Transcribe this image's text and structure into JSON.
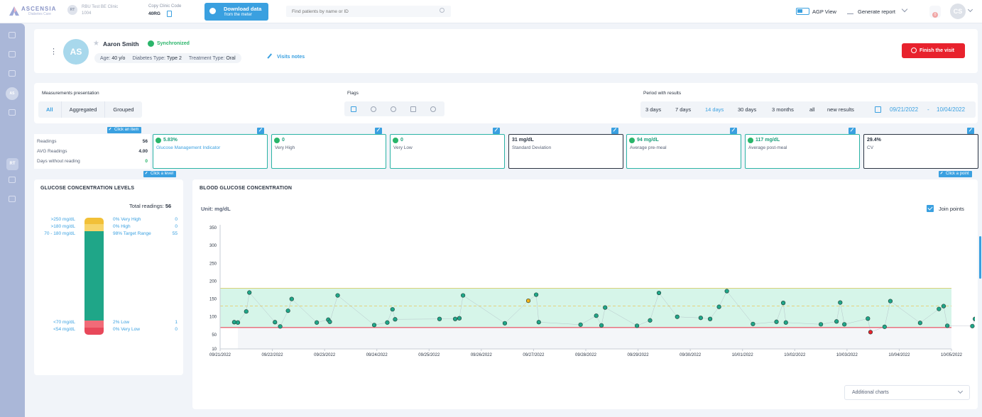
{
  "header": {
    "logo_text": "ASCENSIA",
    "logo_sub": "Diabetes Care",
    "clinic_avatar": "RT",
    "clinic_name": "RBU Test BE Clinic",
    "clinic_id": "1004",
    "copy_title": "Copy Clinic Code",
    "copy_code": "40RG",
    "download_title": "Download data",
    "download_sub": "from the meter",
    "search_placeholder": "Find patients by name or ID",
    "agp_label": "AGP View",
    "generate_label": "Generate report",
    "bell_count": "0",
    "user_initials": "CS"
  },
  "sidebar": {
    "active_circle": "AS",
    "rt_badge": "RT"
  },
  "patient": {
    "initials": "AS",
    "name": "Aaron Smith",
    "status": "Synchronized",
    "age_label": "Age:",
    "age": "40 y/o",
    "diabetes_label": "Diabetes Type:",
    "diabetes": "Type 2",
    "treatment_label": "Treatment Type:",
    "treatment": "Oral",
    "visit_notes": "Visits notes",
    "finish": "Finish the visit"
  },
  "filters": {
    "measurements_label": "Measurements presentation",
    "measurements": [
      "All",
      "Aggregated",
      "Grouped"
    ],
    "flags_label": "Flags",
    "period_label": "Period with results",
    "periods": [
      "3 days",
      "7 days",
      "14 days",
      "30 days",
      "3 months",
      "all",
      "new results"
    ],
    "date_from": "09/21/2022",
    "date_sep": "-",
    "date_to": "10/04/2022"
  },
  "summary": {
    "tag_item": "Click an item",
    "tag_level": "Click a level",
    "tag_point": "Click a point",
    "readings_label": "Readings",
    "readings": "56",
    "avg_label": "AVG Readings",
    "avg": "4.00",
    "days_label": "Days without reading",
    "days": "0"
  },
  "cards": [
    {
      "value": "5.83%",
      "label": "Glucose Management Indicator"
    },
    {
      "value": "0",
      "label": "Very High"
    },
    {
      "value": "0",
      "label": "Very Low"
    },
    {
      "value": "31 mg/dL",
      "label": "Standard Deviation"
    },
    {
      "value": "94 mg/dL",
      "label": "Average pre-meal"
    },
    {
      "value": "117 mg/dL",
      "label": "Average post-meal"
    },
    {
      "value": "29.4%",
      "label": "CV"
    }
  ],
  "levels": {
    "title": "GLUCOSE CONCENTRATION LEVELS",
    "total_label": "Total readings:",
    "total": "56",
    "rows": [
      {
        "range": ">250 mg/dL",
        "pct": "0% Very High",
        "count": "0"
      },
      {
        "range": ">180 mg/dL",
        "pct": "0% High",
        "count": "0"
      },
      {
        "range": "70 - 180 mg/dL",
        "pct": "98% Target Range",
        "count": "55"
      },
      {
        "range": "<70 mg/dL",
        "pct": "2% Low",
        "count": "1"
      },
      {
        "range": "<54 mg/dL",
        "pct": "0% Very Low",
        "count": "0"
      }
    ],
    "colors": {
      "very_high": "#f2c037",
      "high": "#f7d56a",
      "target": "#1fa688",
      "low": "#f16b78",
      "very_low": "#e8485a"
    }
  },
  "chart_section": {
    "title": "BLOOD GLUCOSE CONCENTRATION",
    "unit": "Unit: mg/dL",
    "join_label": "Join points",
    "additional": "Additional charts"
  },
  "chart_data": {
    "type": "scatter",
    "title": "BLOOD GLUCOSE CONCENTRATION",
    "ylabel": "Unit: mg/dL",
    "y_ticks": [
      10,
      50,
      100,
      150,
      200,
      250,
      300,
      350
    ],
    "ylim": [
      10,
      350
    ],
    "x_ticks": [
      "09/21/2022",
      "09/22/2022",
      "09/23/2022",
      "09/24/2022",
      "09/25/2022",
      "09/26/2022",
      "09/27/2022",
      "09/28/2022",
      "09/29/2022",
      "09/30/2022",
      "10/01/2022",
      "10/02/2022",
      "10/03/2022",
      "10/04/2022",
      "10/05/2022"
    ],
    "xlim": [
      0,
      14
    ],
    "target_range": [
      70,
      180
    ],
    "target_upper_line": 130,
    "lines": {
      "high": 180,
      "low": 70
    },
    "join_points": true,
    "points": [
      {
        "x": 0.27,
        "y": 85
      },
      {
        "x": 0.34,
        "y": 84
      },
      {
        "x": 0.5,
        "y": 115
      },
      {
        "x": 0.56,
        "y": 168
      },
      {
        "x": 1.05,
        "y": 85
      },
      {
        "x": 1.15,
        "y": 73
      },
      {
        "x": 1.3,
        "y": 117
      },
      {
        "x": 1.37,
        "y": 150
      },
      {
        "x": 1.85,
        "y": 84
      },
      {
        "x": 2.07,
        "y": 92
      },
      {
        "x": 2.1,
        "y": 86
      },
      {
        "x": 2.25,
        "y": 160
      },
      {
        "x": 2.95,
        "y": 77
      },
      {
        "x": 3.2,
        "y": 84
      },
      {
        "x": 3.3,
        "y": 121
      },
      {
        "x": 3.35,
        "y": 93
      },
      {
        "x": 4.2,
        "y": 94
      },
      {
        "x": 4.5,
        "y": 94
      },
      {
        "x": 4.58,
        "y": 96
      },
      {
        "x": 4.65,
        "y": 160
      },
      {
        "x": 5.45,
        "y": 82
      },
      {
        "x": 5.9,
        "y": 145,
        "flag": "high"
      },
      {
        "x": 6.05,
        "y": 162
      },
      {
        "x": 6.1,
        "y": 85
      },
      {
        "x": 6.9,
        "y": 78
      },
      {
        "x": 7.2,
        "y": 103
      },
      {
        "x": 7.3,
        "y": 76
      },
      {
        "x": 7.37,
        "y": 126
      },
      {
        "x": 7.98,
        "y": 75
      },
      {
        "x": 8.23,
        "y": 90
      },
      {
        "x": 8.4,
        "y": 167
      },
      {
        "x": 8.75,
        "y": 100
      },
      {
        "x": 9.2,
        "y": 97
      },
      {
        "x": 9.38,
        "y": 94
      },
      {
        "x": 9.55,
        "y": 128
      },
      {
        "x": 9.7,
        "y": 172
      },
      {
        "x": 10.2,
        "y": 80
      },
      {
        "x": 10.65,
        "y": 86
      },
      {
        "x": 10.78,
        "y": 139
      },
      {
        "x": 10.83,
        "y": 84
      },
      {
        "x": 11.5,
        "y": 79
      },
      {
        "x": 11.8,
        "y": 87
      },
      {
        "x": 11.87,
        "y": 140
      },
      {
        "x": 11.95,
        "y": 79
      },
      {
        "x": 12.4,
        "y": 95
      },
      {
        "x": 12.45,
        "y": 57,
        "flag": "low"
      },
      {
        "x": 12.72,
        "y": 72
      },
      {
        "x": 12.83,
        "y": 144
      },
      {
        "x": 13.4,
        "y": 83
      },
      {
        "x": 13.76,
        "y": 122
      },
      {
        "x": 13.85,
        "y": 130
      },
      {
        "x": 13.92,
        "y": 75
      },
      {
        "x": 14.4,
        "y": 74
      },
      {
        "x": 14.45,
        "y": 94
      },
      {
        "x": 14.5,
        "y": 125
      },
      {
        "x": 14.6,
        "y": 128
      }
    ],
    "colors": {
      "normal": "#1fa688",
      "high": "#f2b21b",
      "low": "#e8222d",
      "target_fill": "#d6f5e9",
      "line": "#a8b0bc"
    }
  }
}
